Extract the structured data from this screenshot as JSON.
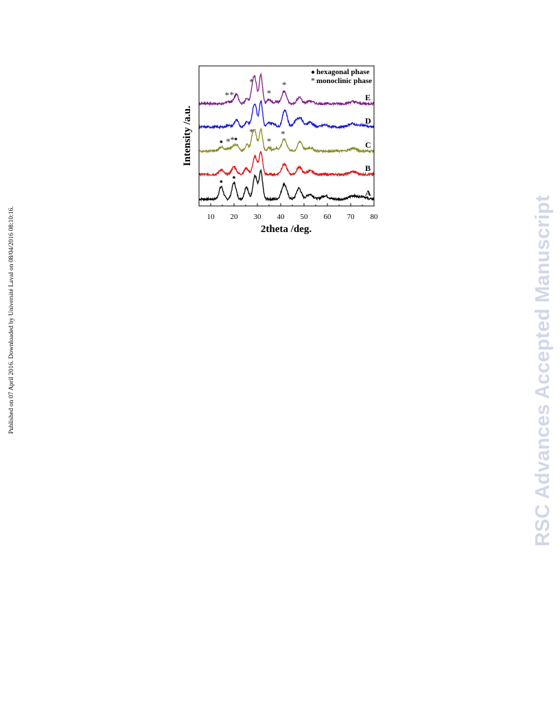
{
  "page": {
    "side_note": "Published on 07 April 2016. Downloaded by Université Laval on 08/04/2016 08:10:16.",
    "watermark": "RSC Advances Accepted Manuscript",
    "watermark_color": "#d3d6e8"
  },
  "chart_data": {
    "type": "line",
    "title": "",
    "xlabel": "2theta /deg.",
    "ylabel": "Intensity /a.u.",
    "xlim": [
      5,
      80
    ],
    "xticks": [
      10,
      20,
      30,
      40,
      50,
      60,
      70,
      80
    ],
    "y_ticks_shown": false,
    "grid": false,
    "legend": {
      "placement": "top-right",
      "entries": [
        {
          "marker": "●",
          "label": "hexagonal phase"
        },
        {
          "marker": "*",
          "label": "monoclinic phase"
        }
      ]
    },
    "series": [
      {
        "name": "A",
        "color": "#000000",
        "offset": 0,
        "peaks": [
          [
            14.5,
            18,
            0.9
          ],
          [
            20,
            24,
            0.9
          ],
          [
            25.3,
            18,
            0.8
          ],
          [
            29,
            34,
            0.9
          ],
          [
            31.5,
            40,
            0.75
          ],
          [
            41.5,
            22,
            1.1
          ],
          [
            47.8,
            16,
            1.0
          ],
          [
            52.5,
            7,
            1.4
          ],
          [
            59,
            5,
            1.4
          ],
          [
            71,
            5,
            1.5
          ],
          [
            75,
            4,
            1.5
          ]
        ]
      },
      {
        "name": "B",
        "color": "#dd1111",
        "offset": 36,
        "peaks": [
          [
            14.5,
            7,
            0.9
          ],
          [
            20,
            11,
            1.0
          ],
          [
            25.3,
            9,
            0.9
          ],
          [
            29,
            26,
            0.9
          ],
          [
            31.5,
            32,
            0.75
          ],
          [
            41.5,
            15,
            1.1
          ],
          [
            48,
            11,
            1.0
          ],
          [
            52.5,
            5,
            1.4
          ],
          [
            71,
            4,
            1.5
          ]
        ]
      },
      {
        "name": "C",
        "color": "#8a8a24",
        "offset": 70,
        "peaks": [
          [
            14.5,
            6,
            0.9
          ],
          [
            17.5,
            4,
            0.7
          ],
          [
            19.5,
            6,
            0.8
          ],
          [
            21.2,
            9,
            0.9
          ],
          [
            25.5,
            9,
            0.8
          ],
          [
            27.8,
            15,
            0.7
          ],
          [
            29,
            27,
            0.8
          ],
          [
            31.5,
            32,
            0.7
          ],
          [
            35,
            5,
            0.8
          ],
          [
            38,
            4,
            0.9
          ],
          [
            41.5,
            17,
            1.1
          ],
          [
            48.3,
            14,
            1.0
          ],
          [
            52.5,
            5,
            1.3
          ],
          [
            71,
            4,
            1.5
          ]
        ]
      },
      {
        "name": "D",
        "color": "#1515d5",
        "offset": 105,
        "peaks": [
          [
            17.5,
            3,
            0.7
          ],
          [
            21,
            10,
            0.9
          ],
          [
            25.5,
            8,
            0.8
          ],
          [
            27.8,
            9,
            0.7
          ],
          [
            29,
            32,
            0.8
          ],
          [
            31.5,
            38,
            0.7
          ],
          [
            35,
            6,
            0.8
          ],
          [
            37,
            5,
            0.9
          ],
          [
            41.8,
            25,
            1.0
          ],
          [
            46.5,
            9,
            1.0
          ],
          [
            48.5,
            12,
            1.0
          ],
          [
            52.5,
            7,
            1.3
          ],
          [
            59,
            3,
            1.4
          ],
          [
            70.5,
            5,
            1.5
          ],
          [
            75,
            3,
            1.5
          ]
        ]
      },
      {
        "name": "E",
        "color": "#7d1b86",
        "offset": 139,
        "peaks": [
          [
            17.2,
            3,
            0.7
          ],
          [
            19,
            3,
            0.7
          ],
          [
            21,
            14,
            0.8
          ],
          [
            25.5,
            7,
            0.8
          ],
          [
            27.8,
            18,
            0.7
          ],
          [
            29,
            34,
            0.8
          ],
          [
            31.5,
            42,
            0.7
          ],
          [
            35,
            6,
            0.8
          ],
          [
            38,
            3,
            0.9
          ],
          [
            41.5,
            18,
            1.0
          ],
          [
            48,
            9,
            1.0
          ],
          [
            52.5,
            4,
            1.3
          ],
          [
            71,
            3,
            1.5
          ]
        ]
      }
    ],
    "annotations": [
      {
        "symbol": "●",
        "series": "A",
        "x": 14.5
      },
      {
        "symbol": "●",
        "series": "A",
        "x": 20
      },
      {
        "symbol": "●",
        "series": "C",
        "x": 14.5
      },
      {
        "symbol": "*",
        "series": "C",
        "x": 17.5
      },
      {
        "symbol": "*",
        "series": "C",
        "x": 19.3
      },
      {
        "symbol": "●",
        "series": "C",
        "x": 20.8
      },
      {
        "symbol": "*",
        "series": "C",
        "x": 27.5
      },
      {
        "symbol": "*",
        "series": "C",
        "x": 35
      },
      {
        "symbol": "*",
        "series": "C",
        "x": 41
      },
      {
        "symbol": "*",
        "series": "E",
        "x": 17
      },
      {
        "symbol": "*",
        "series": "E",
        "x": 19
      },
      {
        "symbol": "*",
        "series": "E",
        "x": 27.5
      },
      {
        "symbol": "*",
        "series": "E",
        "x": 35
      },
      {
        "symbol": "*",
        "series": "E",
        "x": 41.5
      }
    ]
  }
}
